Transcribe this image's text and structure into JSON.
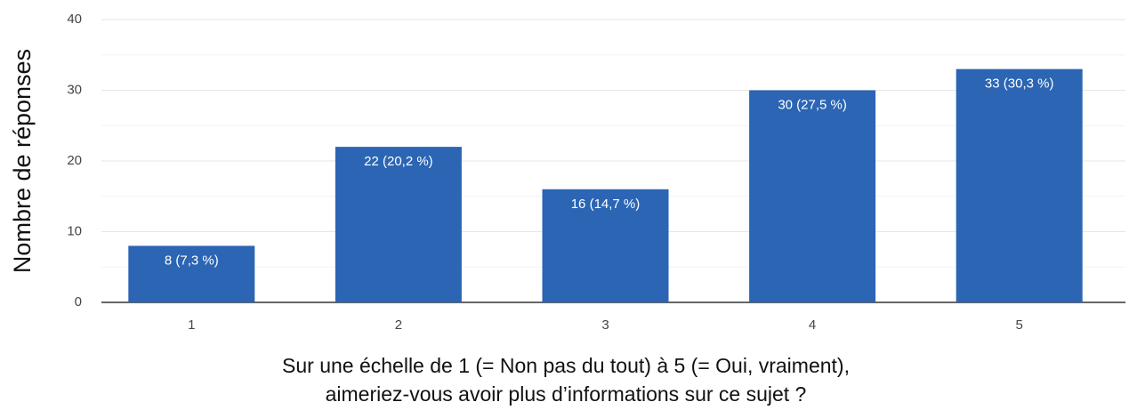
{
  "chart_data": {
    "type": "bar",
    "categories": [
      "1",
      "2",
      "3",
      "4",
      "5"
    ],
    "values": [
      8,
      22,
      16,
      30,
      33
    ],
    "value_labels": [
      "8 (7,3 %)",
      "22 (20,2 %)",
      "16 (14,7 %)",
      "30 (27,5 %)",
      "33 (30,3 %)"
    ],
    "color": "#2b65b4",
    "ylim": [
      0,
      40
    ],
    "yticks": [
      0,
      10,
      20,
      30,
      40
    ],
    "minor_yticks": [
      5,
      15,
      25,
      35
    ],
    "grid": true,
    "ylabel": "Nombre de réponses",
    "xlabel": [
      "Sur une échelle de 1 (= Non pas du tout) à 5 (= Oui, vraiment),",
      "aimeriez-vous avoir plus d’informations sur ce sujet ?"
    ]
  }
}
